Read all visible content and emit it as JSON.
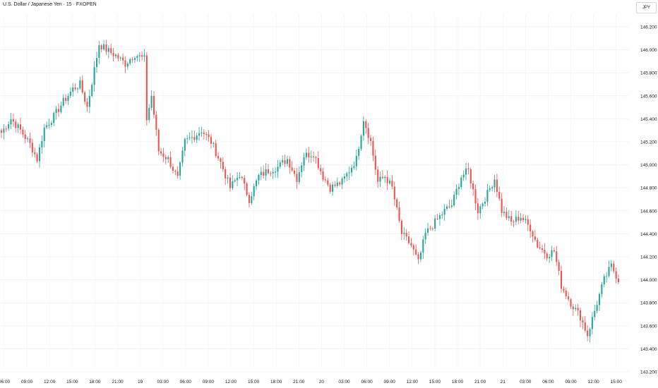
{
  "header": {
    "title": "U.S. Dollar / Japanese Yen · 15 · FXOPEN",
    "currency_label": "JPY"
  },
  "colors": {
    "up": "#26a69a",
    "down": "#ef5350",
    "grid": "#f0f3fa",
    "axis_text": "#131722"
  },
  "chart_data": {
    "type": "candlestick",
    "interval": "15",
    "symbol": "U.S. Dollar / Japanese Yen",
    "source": "FXOPEN",
    "ylim": [
      143.2,
      146.3
    ],
    "y_ticks": [
      "146.200",
      "146.000",
      "145.800",
      "145.600",
      "145.400",
      "145.200",
      "145.000",
      "144.800",
      "144.600",
      "144.400",
      "144.200",
      "144.000",
      "143.800",
      "143.600",
      "143.400",
      "143.200"
    ],
    "x_ticks": [
      "06:00",
      "09:00",
      "12:00",
      "15:00",
      "18:00",
      "21:00",
      "19",
      "03:00",
      "06:00",
      "09:00",
      "12:00",
      "15:00",
      "18:00",
      "21:00",
      "20",
      "03:00",
      "06:00",
      "09:00",
      "12:00",
      "15:00",
      "18:00",
      "21:00",
      "21",
      "03:00",
      "06:00",
      "09:00",
      "12:00",
      "15:00"
    ],
    "anchors": [
      [
        0,
        145.28
      ],
      [
        4,
        145.4
      ],
      [
        8,
        145.3
      ],
      [
        12,
        145.18
      ],
      [
        15,
        145.05
      ],
      [
        18,
        145.32
      ],
      [
        22,
        145.42
      ],
      [
        26,
        145.55
      ],
      [
        30,
        145.66
      ],
      [
        33,
        145.7
      ],
      [
        36,
        145.5
      ],
      [
        38,
        145.72
      ],
      [
        41,
        146.05
      ],
      [
        44,
        146.0
      ],
      [
        48,
        145.95
      ],
      [
        52,
        145.88
      ],
      [
        56,
        145.96
      ],
      [
        60,
        145.92
      ],
      [
        61,
        145.4
      ],
      [
        63,
        145.6
      ],
      [
        66,
        145.12
      ],
      [
        70,
        145.05
      ],
      [
        74,
        144.88
      ],
      [
        77,
        145.2
      ],
      [
        81,
        145.25
      ],
      [
        84,
        145.3
      ],
      [
        88,
        145.2
      ],
      [
        92,
        145.02
      ],
      [
        96,
        144.8
      ],
      [
        100,
        144.92
      ],
      [
        104,
        144.7
      ],
      [
        108,
        144.9
      ],
      [
        112,
        144.95
      ],
      [
        116,
        144.98
      ],
      [
        120,
        145.05
      ],
      [
        124,
        144.88
      ],
      [
        127,
        145.08
      ],
      [
        131,
        145.1
      ],
      [
        135,
        144.9
      ],
      [
        138,
        144.8
      ],
      [
        143,
        144.85
      ],
      [
        146,
        144.95
      ],
      [
        149,
        145.05
      ],
      [
        152,
        145.4
      ],
      [
        155,
        145.2
      ],
      [
        158,
        144.85
      ],
      [
        161,
        144.9
      ],
      [
        164,
        144.8
      ],
      [
        168,
        144.4
      ],
      [
        172,
        144.3
      ],
      [
        175,
        144.15
      ],
      [
        178,
        144.4
      ],
      [
        182,
        144.5
      ],
      [
        186,
        144.6
      ],
      [
        189,
        144.65
      ],
      [
        193,
        144.9
      ],
      [
        196,
        144.95
      ],
      [
        200,
        144.6
      ],
      [
        204,
        144.75
      ],
      [
        207,
        144.88
      ],
      [
        210,
        144.6
      ],
      [
        214,
        144.5
      ],
      [
        218,
        144.55
      ],
      [
        222,
        144.45
      ],
      [
        225,
        144.3
      ],
      [
        229,
        144.22
      ],
      [
        232,
        144.25
      ],
      [
        235,
        143.95
      ],
      [
        239,
        143.8
      ],
      [
        243,
        143.68
      ],
      [
        246,
        143.52
      ],
      [
        250,
        143.8
      ],
      [
        253,
        144.0
      ],
      [
        256,
        144.12
      ],
      [
        259,
        144.0
      ]
    ]
  }
}
